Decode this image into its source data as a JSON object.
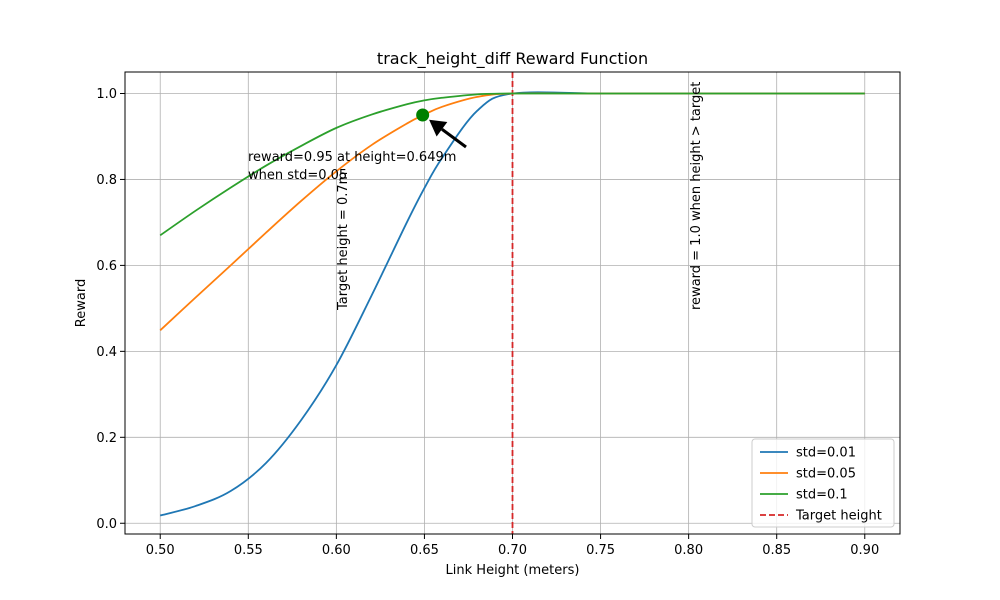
{
  "chart_data": {
    "type": "line",
    "title": "track_height_diff Reward Function",
    "xlabel": "Link Height (meters)",
    "ylabel": "Reward",
    "xlim": [
      0.48,
      0.92
    ],
    "ylim": [
      -0.025,
      1.05
    ],
    "grid": true,
    "legend_position": "lower-right",
    "x_ticks": [
      "0.50",
      "0.55",
      "0.60",
      "0.65",
      "0.70",
      "0.75",
      "0.80",
      "0.85",
      "0.90"
    ],
    "y_ticks": [
      "0.0",
      "0.2",
      "0.4",
      "0.6",
      "0.8",
      "1.0"
    ],
    "x_tick_values": [
      0.5,
      0.55,
      0.6,
      0.65,
      0.7,
      0.75,
      0.8,
      0.85,
      0.9
    ],
    "y_tick_values": [
      0.0,
      0.2,
      0.4,
      0.6,
      0.8,
      1.0
    ],
    "x": [
      0.5,
      0.52,
      0.54,
      0.56,
      0.58,
      0.6,
      0.62,
      0.64,
      0.65,
      0.66,
      0.68,
      0.7,
      0.75,
      0.8,
      0.85,
      0.9
    ],
    "series": [
      {
        "name": "std=0.01",
        "color": "#1f77b4",
        "values": [
          0.018,
          0.04,
          0.075,
          0.14,
          0.24,
          0.368,
          0.53,
          0.7,
          0.78,
          0.85,
          0.96,
          1.0,
          1.0,
          1.0,
          1.0,
          1.0
        ]
      },
      {
        "name": "std=0.05",
        "color": "#ff7f0e",
        "values": [
          0.449,
          0.525,
          0.6,
          0.676,
          0.75,
          0.819,
          0.88,
          0.93,
          0.951,
          0.969,
          0.992,
          1.0,
          1.0,
          1.0,
          1.0,
          1.0
        ]
      },
      {
        "name": "std=0.1",
        "color": "#2ca02c",
        "values": [
          0.67,
          0.727,
          0.781,
          0.832,
          0.878,
          0.92,
          0.951,
          0.975,
          0.984,
          0.99,
          0.998,
          1.0,
          1.0,
          1.0,
          1.0,
          1.0
        ]
      }
    ],
    "target_line": {
      "name": "Target height",
      "x": 0.7,
      "color": "#d62728"
    },
    "highlight_point": {
      "x": 0.649,
      "y": 0.95,
      "color": "#008000"
    },
    "annotations": {
      "point_note_line1": "reward=0.95 at height=0.649m",
      "point_note_line2": "when std=0.05",
      "target_note": "Target height = 0.7m",
      "above_note": "reward = 1.0 when height > target"
    }
  }
}
